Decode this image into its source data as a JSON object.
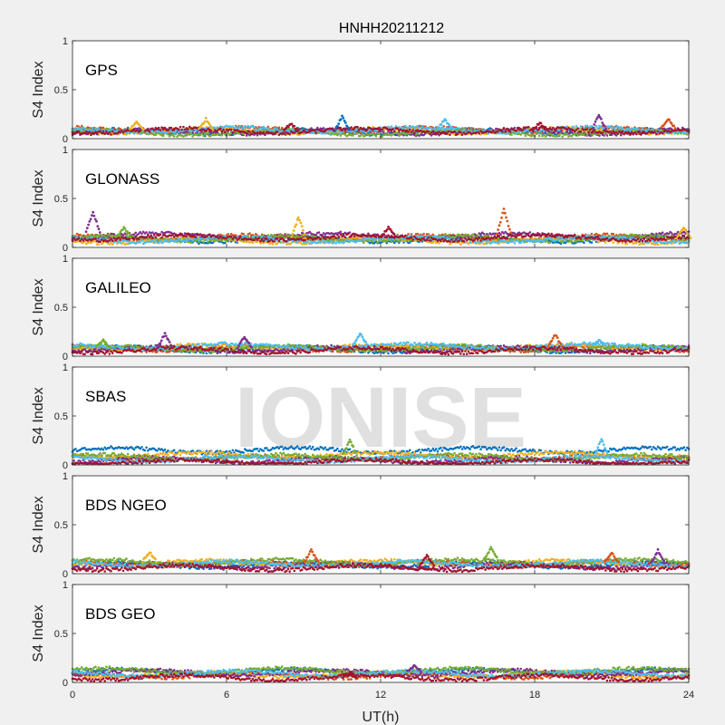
{
  "chart_data": {
    "type": "scatter",
    "title": "HNHH20211212",
    "xlabel": "UT(h)",
    "ylabel": "S4 Index",
    "xlim": [
      0,
      24
    ],
    "ylim": [
      0,
      1
    ],
    "x_ticks": [
      "0",
      "6",
      "12",
      "18",
      "24"
    ],
    "y_ticks": [
      "0",
      "0.5",
      "1"
    ],
    "watermark": "IONISE",
    "series_colors": [
      "#0072BD",
      "#D95319",
      "#EDB120",
      "#7E2F8E",
      "#77AC30",
      "#4DBEEE",
      "#A2142F"
    ],
    "panels": [
      {
        "label": "GPS",
        "baseline": [
          0.07,
          0.09,
          0.08,
          0.07,
          0.06,
          0.09,
          0.08
        ],
        "peaks": [
          {
            "x": 2.5,
            "y": 0.18,
            "series": 2
          },
          {
            "x": 5.2,
            "y": 0.21,
            "series": 2
          },
          {
            "x": 8.5,
            "y": 0.16,
            "series": 6
          },
          {
            "x": 10.5,
            "y": 0.25,
            "series": 0
          },
          {
            "x": 14.5,
            "y": 0.2,
            "series": 5
          },
          {
            "x": 18.2,
            "y": 0.17,
            "series": 6
          },
          {
            "x": 20.5,
            "y": 0.26,
            "series": 3
          },
          {
            "x": 23.2,
            "y": 0.2,
            "series": 1
          }
        ]
      },
      {
        "label": "GLONASS",
        "baseline": [
          0.08,
          0.1,
          0.07,
          0.12,
          0.09,
          0.08,
          0.1
        ],
        "peaks": [
          {
            "x": 0.8,
            "y": 0.33,
            "series": 3
          },
          {
            "x": 2.0,
            "y": 0.2,
            "series": 4
          },
          {
            "x": 8.8,
            "y": 0.33,
            "series": 2
          },
          {
            "x": 12.3,
            "y": 0.19,
            "series": 6
          },
          {
            "x": 16.8,
            "y": 0.38,
            "series": 1
          },
          {
            "x": 23.8,
            "y": 0.23,
            "series": 2
          }
        ]
      },
      {
        "label": "GALILEO",
        "baseline": [
          0.07,
          0.08,
          0.09,
          0.07,
          0.08,
          0.1,
          0.06
        ],
        "peaks": [
          {
            "x": 1.2,
            "y": 0.17,
            "series": 4
          },
          {
            "x": 3.6,
            "y": 0.25,
            "series": 3
          },
          {
            "x": 6.7,
            "y": 0.22,
            "series": 3
          },
          {
            "x": 11.2,
            "y": 0.22,
            "series": 5
          },
          {
            "x": 18.8,
            "y": 0.23,
            "series": 1
          },
          {
            "x": 20.5,
            "y": 0.15,
            "series": 5
          }
        ]
      },
      {
        "label": "SBAS",
        "baseline": [
          0.15,
          0.07,
          0.1,
          0.05,
          0.08,
          0.06,
          0.03
        ],
        "peaks": [
          {
            "x": 10.8,
            "y": 0.26,
            "series": 4
          },
          {
            "x": 20.6,
            "y": 0.29,
            "series": 5
          }
        ]
      },
      {
        "label": "BDS NGEO",
        "baseline": [
          0.09,
          0.1,
          0.11,
          0.08,
          0.12,
          0.1,
          0.06
        ],
        "peaks": [
          {
            "x": 3.0,
            "y": 0.2,
            "series": 2
          },
          {
            "x": 9.3,
            "y": 0.23,
            "series": 1
          },
          {
            "x": 13.8,
            "y": 0.22,
            "series": 6
          },
          {
            "x": 16.3,
            "y": 0.24,
            "series": 4
          },
          {
            "x": 21.0,
            "y": 0.2,
            "series": 1
          },
          {
            "x": 22.8,
            "y": 0.25,
            "series": 3
          }
        ]
      },
      {
        "label": "BDS GEO",
        "baseline": [
          0.11,
          0.07,
          0.08,
          0.1,
          0.12,
          0.09,
          0.05
        ],
        "peaks": [
          {
            "x": 10.8,
            "y": 0.14,
            "series": 6
          },
          {
            "x": 13.3,
            "y": 0.16,
            "series": 3
          }
        ]
      }
    ]
  }
}
